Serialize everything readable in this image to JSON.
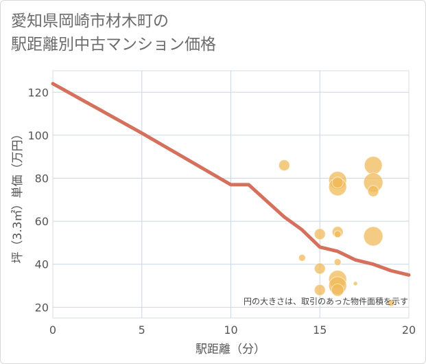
{
  "chart_data": {
    "type": "scatter",
    "title": [
      "愛知県岡崎市材木町の",
      "駅距離別中古マンション価格"
    ],
    "xlabel": "駅距離（分）",
    "ylabel": "坪（3.3㎡）単価（万円）",
    "xlim": [
      0,
      20
    ],
    "ylim": [
      15,
      130
    ],
    "xticks": [
      0,
      5,
      10,
      15,
      20
    ],
    "yticks": [
      20,
      40,
      60,
      80,
      100,
      120
    ],
    "grid": true,
    "note": "円の大きさは、取引のあった物件面積を示す",
    "colors": {
      "line": "#d4705c",
      "bubble": "#f0b95a",
      "grid": "#c9d6e3",
      "plot_bg": "#ffffff"
    },
    "series": [
      {
        "kind": "line",
        "x": [
          0,
          5,
          10,
          11,
          13,
          14,
          15,
          16,
          17,
          18,
          19,
          20
        ],
        "y": [
          124,
          101,
          77,
          77,
          62,
          56,
          48,
          46,
          42,
          40,
          37,
          35
        ]
      },
      {
        "kind": "bubble",
        "points": [
          {
            "x": 13,
            "y": 86,
            "r": 8
          },
          {
            "x": 14,
            "y": 43,
            "r": 5
          },
          {
            "x": 15,
            "y": 54,
            "r": 8
          },
          {
            "x": 15,
            "y": 38,
            "r": 8
          },
          {
            "x": 15,
            "y": 28,
            "r": 8
          },
          {
            "x": 16,
            "y": 79,
            "r": 13
          },
          {
            "x": 16,
            "y": 76,
            "r": 13
          },
          {
            "x": 16,
            "y": 78,
            "r": 8
          },
          {
            "x": 16,
            "y": 55,
            "r": 8
          },
          {
            "x": 16,
            "y": 54,
            "r": 5
          },
          {
            "x": 16,
            "y": 41,
            "r": 5
          },
          {
            "x": 16,
            "y": 33,
            "r": 13
          },
          {
            "x": 16,
            "y": 30,
            "r": 13
          },
          {
            "x": 16,
            "y": 28,
            "r": 9
          },
          {
            "x": 17,
            "y": 31,
            "r": 3
          },
          {
            "x": 18,
            "y": 86,
            "r": 13
          },
          {
            "x": 18,
            "y": 78,
            "r": 14
          },
          {
            "x": 18,
            "y": 74,
            "r": 8
          },
          {
            "x": 18,
            "y": 53,
            "r": 14
          },
          {
            "x": 19,
            "y": 22,
            "r": 5
          }
        ]
      }
    ]
  }
}
